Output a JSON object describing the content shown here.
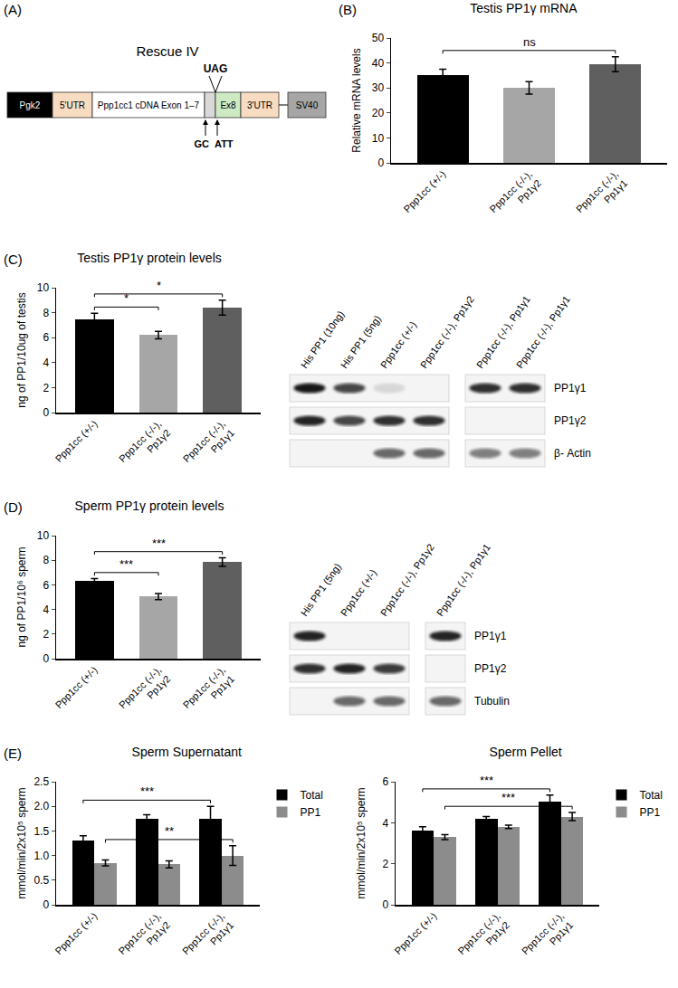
{
  "chart_data": [
    {
      "type": "bar",
      "panel_label": "(B)",
      "title": "Testis PP1γ mRNA",
      "y_label": "Relative mRNA levels",
      "categories": [
        "Ppp1cc (+/-)",
        "Ppp1cc (-/-),\nPp1γ2",
        "Ppp1cc (-/-),\nPp1γ1"
      ],
      "values": [
        35,
        30,
        39.5
      ],
      "errors": [
        2.5,
        2.5,
        3
      ],
      "colors": [
        "#000000",
        "#a6a6a6",
        "#5f5f5f"
      ],
      "ylim": [
        0,
        50
      ],
      "yticks": [
        0,
        10,
        20,
        30,
        40,
        50
      ],
      "significance": [
        {
          "from": "Ppp1cc (+/-)",
          "to": "Ppp1cc (-/-),\nPp1γ1",
          "text": "ns"
        }
      ]
    },
    {
      "type": "bar",
      "panel_label": "(C)",
      "title": "Testis PP1γ protein levels",
      "y_label": "ng of PP1/10ug of testis",
      "categories": [
        "Ppp1cc (+/-)",
        "Ppp1cc (-/-),\nPp1γ2",
        "Ppp1cc (-/-),\nPp1γ1"
      ],
      "values": [
        7.5,
        6.2,
        8.4
      ],
      "errors": [
        0.45,
        0.3,
        0.6
      ],
      "colors": [
        "#000000",
        "#a6a6a6",
        "#5f5f5f"
      ],
      "ylim": [
        0,
        10
      ],
      "yticks": [
        0,
        2,
        4,
        6,
        8,
        10
      ],
      "significance": [
        {
          "from": "Ppp1cc (+/-)",
          "to": "Ppp1cc (-/-),\nPp1γ2",
          "text": "*"
        },
        {
          "from": "Ppp1cc (+/-)",
          "to": "Ppp1cc (-/-),\nPp1γ1",
          "text": "*"
        }
      ]
    },
    {
      "type": "bar",
      "panel_label": "(D)",
      "title": "Sperm PP1γ protein levels",
      "y_label": "ng of PP1/10⁶ sperm",
      "categories": [
        "Ppp1cc (+/-)",
        "Ppp1cc (-/-),\nPp1γ2",
        "Ppp1cc (-/-),\nPp1γ1"
      ],
      "values": [
        6.35,
        5.05,
        7.85
      ],
      "errors": [
        0.15,
        0.25,
        0.35
      ],
      "colors": [
        "#000000",
        "#a6a6a6",
        "#5f5f5f"
      ],
      "ylim": [
        0,
        10
      ],
      "yticks": [
        0,
        2,
        4,
        6,
        8,
        10
      ],
      "significance": [
        {
          "from": "Ppp1cc (+/-)",
          "to": "Ppp1cc (-/-),\nPp1γ2",
          "text": "***"
        },
        {
          "from": "Ppp1cc (+/-)",
          "to": "Ppp1cc (-/-),\nPp1γ1",
          "text": "***"
        }
      ]
    },
    {
      "type": "bar",
      "panel_label": "(E)",
      "title": "Sperm Supernatant",
      "y_label": "mmol/min/2x10⁵ sperm",
      "categories": [
        "Ppp1cc (+/-)",
        "Ppp1cc (-/-),\nPp1γ2",
        "Ppp1cc (-/-),\nPp1γ1"
      ],
      "series": [
        {
          "name": "Total",
          "color": "#000000",
          "values": [
            1.3,
            1.75,
            1.75
          ],
          "errors": [
            0.1,
            0.08,
            0.25
          ]
        },
        {
          "name": "PP1",
          "color": "#8c8c8c",
          "values": [
            0.85,
            0.82,
            1.0
          ],
          "errors": [
            0.06,
            0.07,
            0.2
          ]
        }
      ],
      "legend": "top right",
      "ylim": [
        0,
        2.5
      ],
      "yticks": [
        0,
        0.5,
        {
          "value": 1,
          "label": "1.0"
        },
        1.5,
        {
          "value": 2,
          "label": "2.0"
        },
        2.5
      ],
      "significance": [
        {
          "from": "Ppp1cc (+/-)",
          "to": "Ppp1cc (-/-),\nPp1γ1",
          "series": "Total",
          "text": "***"
        },
        {
          "from": "Ppp1cc (+/-)",
          "to": "Ppp1cc (-/-),\nPp1γ1",
          "series": "PP1",
          "text": "**"
        }
      ]
    },
    {
      "type": "bar",
      "title": "Sperm Pellet",
      "y_label": "mmol/min/2x10⁵ sperm",
      "categories": [
        "Ppp1cc (+/-)",
        "Ppp1cc (-/-),\nPp1γ2",
        "Ppp1cc (-/-),\nPp1γ1"
      ],
      "series": [
        {
          "name": "Total",
          "color": "#000000",
          "values": [
            3.6,
            4.2,
            5.05
          ],
          "errors": [
            0.2,
            0.1,
            0.3
          ]
        },
        {
          "name": "PP1",
          "color": "#8c8c8c",
          "values": [
            3.3,
            3.8,
            4.3
          ],
          "errors": [
            0.12,
            0.08,
            0.2
          ]
        }
      ],
      "legend": "top right",
      "ylim": [
        0,
        6
      ],
      "yticks": [
        0,
        2,
        4,
        6
      ],
      "significance": [
        {
          "from": "Ppp1cc (+/-)",
          "to": "Ppp1cc (-/-),\nPp1γ1",
          "series": "Total",
          "text": "***"
        },
        {
          "from": "Ppp1cc (+/-)",
          "to": "Ppp1cc (-/-),\nPp1γ1",
          "series": "PP1",
          "text": "***"
        }
      ]
    }
  ],
  "diagram": {
    "panel_label": "(A)",
    "title": "Rescue IV",
    "segments": [
      {
        "text": "Pgk2",
        "color": "#000000"
      },
      {
        "text": "5'UTR",
        "color": "#f8dcc2"
      },
      {
        "text": "Ppp1cc1 cDNA Exon 1–7",
        "color": "#ffffff"
      },
      {
        "color": "#d9d9d9"
      },
      {
        "text": "Ex8",
        "color": "#cdeac3"
      },
      {
        "text": "3'UTR",
        "color": "#f8dcc2"
      },
      {
        "text": "SV40",
        "color": "#a6a6a6"
      }
    ],
    "stop_codon": "UAG",
    "mutations": [
      "GC",
      "ATT"
    ]
  },
  "blots": [
    {
      "groups": [
        [
          "His PP1 (10ng)",
          "His PP1 (5ng)",
          "Ppp1cc (+/-)",
          "Ppp1cc (-/-), Pp1γ2"
        ],
        [
          "Ppp1cc (-/-), Pp1γ1",
          "Ppp1cc (-/-), Pp1γ1"
        ]
      ],
      "rows": [
        {
          "label": "PP1γ1",
          "bands": [
            [
              0.95,
              0.75,
              0.12,
              0
            ],
            [
              0.85,
              0.85
            ]
          ]
        },
        {
          "label": "PP1γ2",
          "bands": [
            [
              0.9,
              0.75,
              0.85,
              0.85
            ],
            [
              0,
              0
            ]
          ]
        },
        {
          "label": "β- Actin",
          "bands": [
            [
              0,
              0,
              0.6,
              0.6
            ],
            [
              0.5,
              0.5
            ]
          ]
        }
      ]
    },
    {
      "groups": [
        [
          "His PP1 (5ng)",
          "Ppp1cc (+/-)",
          "Ppp1cc (-/-), Pp1γ2"
        ],
        [
          "Ppp1cc (-/-), Pp1γ1"
        ]
      ],
      "rows": [
        {
          "label": "PP1γ1",
          "bands": [
            [
              0.9,
              0,
              0
            ],
            [
              0.9
            ]
          ]
        },
        {
          "label": "PP1γ2",
          "bands": [
            [
              0.85,
              0.9,
              0.8
            ],
            [
              0
            ]
          ]
        },
        {
          "label": "Tubulin",
          "bands": [
            [
              0,
              0.6,
              0.6
            ],
            [
              0.6
            ]
          ]
        }
      ]
    }
  ]
}
